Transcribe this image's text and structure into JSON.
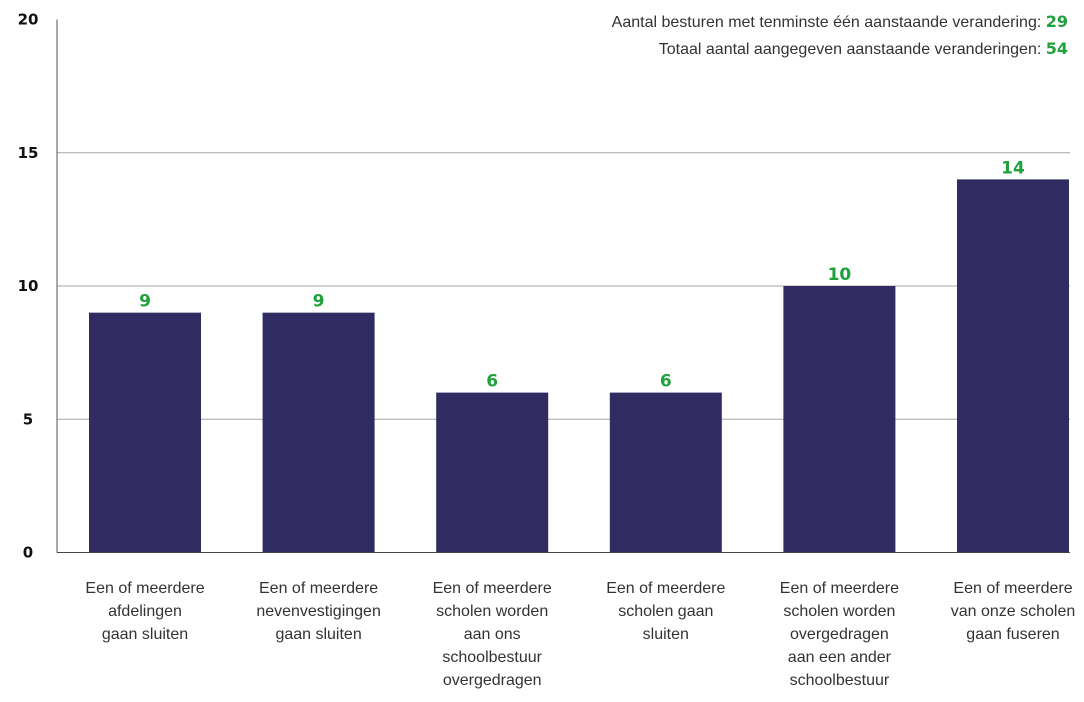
{
  "chart_data": {
    "type": "bar",
    "categories": [
      "Een of meerdere afdelingen gaan sluiten",
      "Een of meerdere nevenvestigingen gaan sluiten",
      "Een of meerdere scholen worden aan ons schoolbestuur overgedragen",
      "Een of meerdere scholen gaan sluiten",
      "Een of meerdere scholen worden overgedragen aan een ander schoolbestuur",
      "Een of meerdere van onze scholen gaan fuseren"
    ],
    "category_lines": [
      [
        "Een of meerdere",
        "afdelingen",
        "gaan sluiten"
      ],
      [
        "Een of meerdere",
        "nevenvestigingen",
        "gaan sluiten"
      ],
      [
        "Een of meerdere",
        "scholen worden",
        "aan ons",
        "schoolbestuur",
        "overgedragen"
      ],
      [
        "Een of meerdere",
        "scholen gaan",
        "sluiten"
      ],
      [
        "Een of meerdere",
        "scholen worden",
        "overgedragen",
        "aan een ander",
        "schoolbestuur"
      ],
      [
        "Een of meerdere",
        "van onze scholen",
        "gaan fuseren"
      ]
    ],
    "values": [
      9,
      9,
      6,
      6,
      10,
      14
    ],
    "yticks": [
      0,
      5,
      10,
      15,
      20
    ],
    "ylim": [
      0,
      20
    ],
    "grid": true,
    "title": "",
    "xlabel": "",
    "ylabel": "",
    "colors": {
      "bar": "#302c62",
      "value_label": "#1fa23c",
      "grid": "#a6a6a6"
    }
  },
  "notes": [
    {
      "label": "Aantal besturen met tenminste één aanstaande verandering: ",
      "value": "29"
    },
    {
      "label": "Totaal aantal aangegeven aanstaande veranderingen: ",
      "value": "54"
    }
  ]
}
